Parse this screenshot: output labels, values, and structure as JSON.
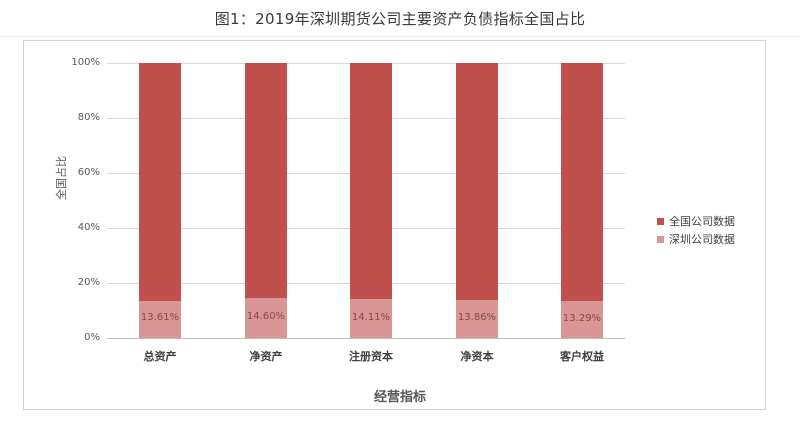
{
  "title": "图1：2019年深圳期货公司主要资产负债指标全国占比",
  "chart_data": {
    "type": "bar",
    "stacked": true,
    "percent_stacked": true,
    "title": "图1：2019年深圳期货公司主要资产负债指标全国占比",
    "xlabel": "经营指标",
    "ylabel": "全国占比",
    "ylim": [
      0,
      100
    ],
    "yticks": [
      "0%",
      "20%",
      "40%",
      "60%",
      "80%",
      "100%"
    ],
    "categories": [
      "总资产",
      "净资产",
      "注册资本",
      "净资本",
      "客户权益"
    ],
    "series": [
      {
        "name": "全国公司数据",
        "color": "#c0504d",
        "values": [
          86.39,
          85.4,
          85.89,
          86.14,
          86.71
        ]
      },
      {
        "name": "深圳公司数据",
        "color": "#d99694",
        "values": [
          13.61,
          14.6,
          14.11,
          13.86,
          13.29
        ]
      }
    ],
    "data_labels": [
      "13.61%",
      "14.60%",
      "14.11%",
      "13.86%",
      "13.29%"
    ],
    "legend_position": "right",
    "grid": true
  },
  "legend": {
    "items": [
      {
        "label": "全国公司数据",
        "color": "#c0504d"
      },
      {
        "label": "深圳公司数据",
        "color": "#d99694"
      }
    ]
  }
}
